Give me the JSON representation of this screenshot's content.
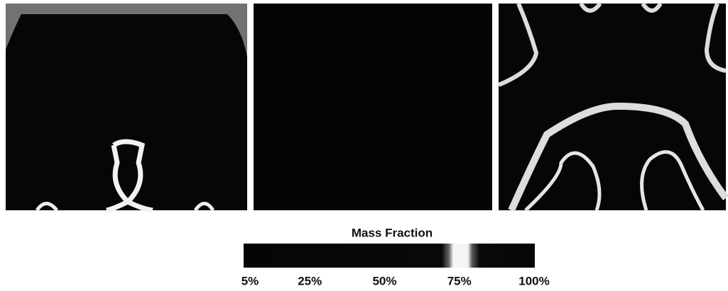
{
  "colorbar": {
    "label": "Mass Fraction",
    "range": [
      5,
      100
    ],
    "ticks": [
      {
        "value": 5,
        "label": "5%"
      },
      {
        "value": 25,
        "label": "25%"
      },
      {
        "value": 50,
        "label": "50%"
      },
      {
        "value": 75,
        "label": "75%"
      },
      {
        "value": 100,
        "label": "100%"
      }
    ]
  }
}
